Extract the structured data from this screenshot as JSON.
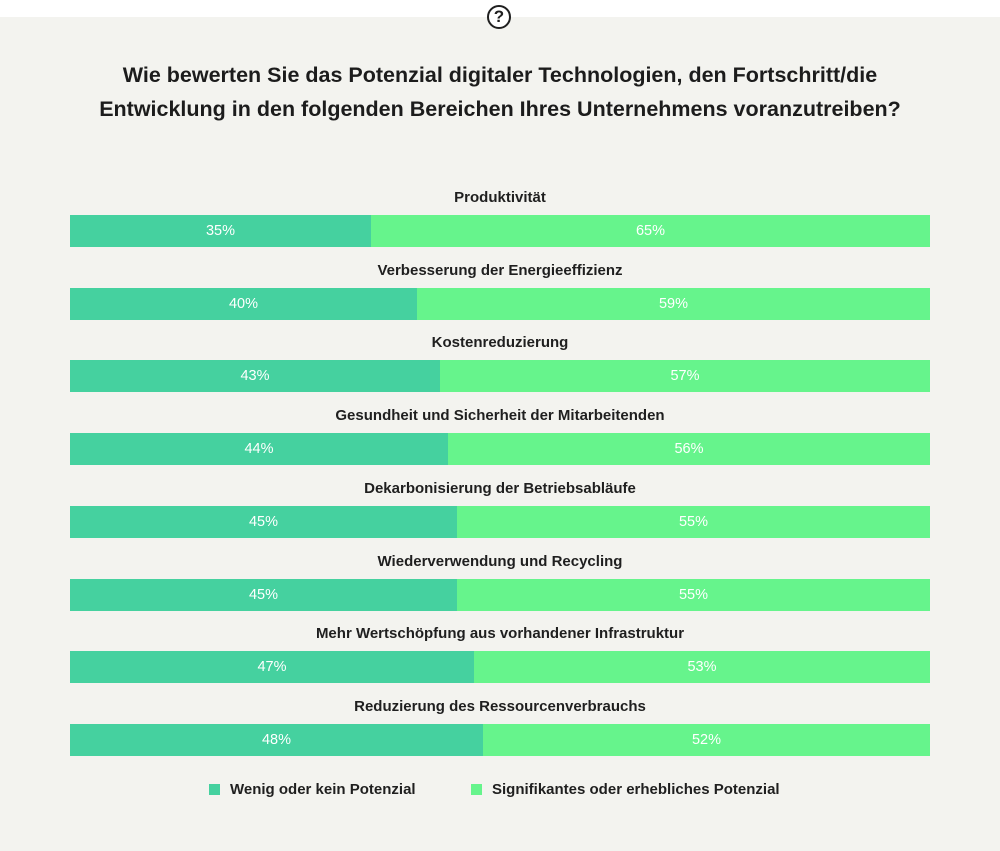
{
  "title": "Wie bewerten Sie das Potenzial digitaler Technologien, den Fortschritt/die Entwicklung in den folgenden Bereichen Ihres Unternehmens voranzutreiben?",
  "help_icon": "question-circle-icon",
  "help_symbol": "?",
  "colors": {
    "low": "#45d19f",
    "high": "#66f48c"
  },
  "legend": {
    "low": "Wenig oder kein Potenzial",
    "high": "Signifikantes oder erhebliches Potenzial"
  },
  "chart_data": {
    "type": "bar",
    "orientation": "horizontal-stacked-100",
    "title": "Wie bewerten Sie das Potenzial digitaler Technologien, den Fortschritt/die Entwicklung in den folgenden Bereichen Ihres Unternehmens voranzutreiben?",
    "categories": [
      "Produktivität",
      "Verbesserung der Energieeffizienz",
      "Kostenreduzierung",
      "Gesundheit und Sicherheit der Mitarbeitenden",
      "Dekarbonisierung der Betriebsabläufe",
      "Wiederverwendung und Recycling",
      "Mehr Wertschöpfung aus vorhandener Infrastruktur",
      "Reduzierung des Ressourcenverbrauchs"
    ],
    "series": [
      {
        "name": "Wenig oder kein Potenzial",
        "values": [
          35,
          40,
          43,
          44,
          45,
          45,
          47,
          48
        ]
      },
      {
        "name": "Signifikantes oder erhebliches Potenzial",
        "values": [
          65,
          59,
          57,
          56,
          55,
          55,
          53,
          52
        ]
      }
    ],
    "value_suffix": "%",
    "xlim": [
      0,
      100
    ],
    "legend_position": "bottom"
  }
}
